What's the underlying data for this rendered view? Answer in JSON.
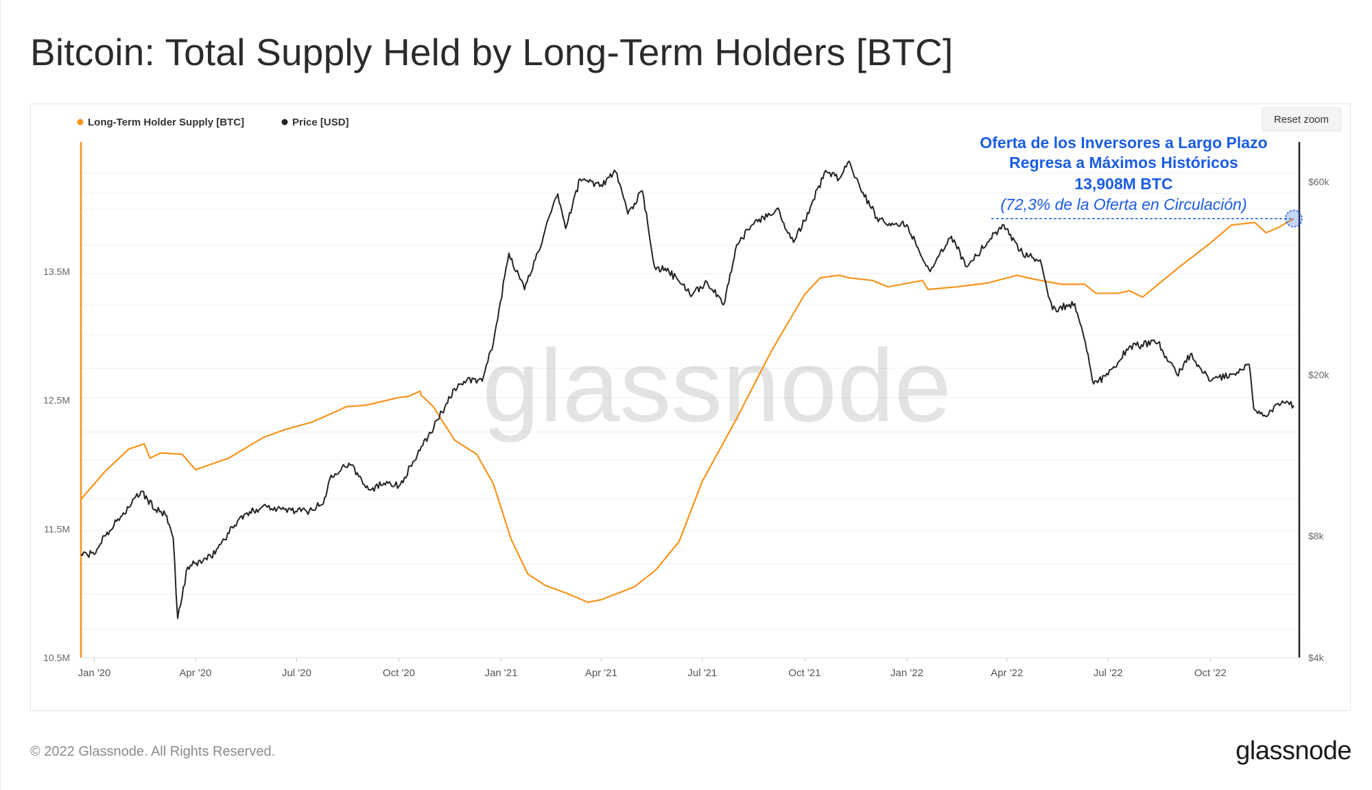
{
  "title": "Bitcoin: Total Supply Held by Long-Term Holders [BTC]",
  "footer": {
    "copyright": "© 2022 Glassnode. All Rights Reserved.",
    "logo": "glassnode"
  },
  "watermark": "glassnode",
  "reset_zoom_label": "Reset zoom",
  "colors": {
    "supply": "#f7931a",
    "price": "#222222",
    "annotation": "#1a5ce6",
    "grid": "#ececec"
  },
  "annotation": {
    "lines": [
      "Oferta de los Inversores a Largo Plazo",
      "Regresa a Máximos Históricos",
      "13,908M BTC"
    ],
    "note": "(72,3% de la Oferta en Circulación)"
  },
  "chart_data": {
    "type": "line",
    "title": "Bitcoin: Total Supply Held by Long-Term Holders [BTC]",
    "legend": {
      "position": "top-left",
      "entries": [
        "Long-Term Holder Supply [BTC]",
        "Price [USD]"
      ]
    },
    "x_ticks": [
      "Jan '20",
      "Apr '20",
      "Jul '20",
      "Oct '20",
      "Jan '21",
      "Apr '21",
      "Jul '21",
      "Oct '21",
      "Jan '22",
      "Apr '22",
      "Jul '22",
      "Oct '22"
    ],
    "y_left": {
      "ticks": [
        "10.5M",
        "11.5M",
        "12.5M",
        "13.5M"
      ],
      "range": [
        10.5,
        14.5
      ],
      "unit": "M BTC"
    },
    "y_right": {
      "ticks": [
        "$4k",
        "$8k",
        "$20k",
        "$60k"
      ],
      "scale": "log",
      "range": [
        4000,
        75000
      ]
    },
    "grid": true,
    "x_range": [
      "2019-12-20",
      "2022-12-20"
    ],
    "series": [
      {
        "name": "Long-Term Holder Supply [BTC]",
        "axis": "left",
        "x": [
          "2019-12-20",
          "2020-01-10",
          "2020-02-01",
          "2020-02-15",
          "2020-02-20",
          "2020-03-01",
          "2020-03-20",
          "2020-04-01",
          "2020-05-01",
          "2020-06-01",
          "2020-06-20",
          "2020-07-15",
          "2020-08-05",
          "2020-08-15",
          "2020-09-01",
          "2020-10-01",
          "2020-10-10",
          "2020-10-20",
          "2020-10-21",
          "2020-11-01",
          "2020-11-20",
          "2020-12-10",
          "2020-12-25",
          "2021-01-10",
          "2021-01-25",
          "2021-02-10",
          "2021-03-01",
          "2021-03-20",
          "2021-04-01",
          "2021-05-01",
          "2021-05-20",
          "2021-06-10",
          "2021-07-01",
          "2021-08-01",
          "2021-09-01",
          "2021-10-01",
          "2021-10-15",
          "2021-11-01",
          "2021-11-10",
          "2021-11-20",
          "2021-12-01",
          "2021-12-15",
          "2022-01-15",
          "2022-01-20",
          "2022-02-15",
          "2022-03-15",
          "2022-04-10",
          "2022-04-25",
          "2022-05-20",
          "2022-06-10",
          "2022-06-20",
          "2022-07-10",
          "2022-07-20",
          "2022-08-01",
          "2022-09-01",
          "2022-10-01",
          "2022-10-20",
          "2022-11-10",
          "2022-11-20",
          "2022-12-01",
          "2022-12-15"
        ],
        "values": [
          11.73,
          11.94,
          12.12,
          12.16,
          12.05,
          12.09,
          12.08,
          11.96,
          12.05,
          12.21,
          12.27,
          12.33,
          12.41,
          12.45,
          12.46,
          12.52,
          12.53,
          12.57,
          12.54,
          12.45,
          12.19,
          12.08,
          11.85,
          11.42,
          11.15,
          11.06,
          11.0,
          10.93,
          10.95,
          11.05,
          11.18,
          11.4,
          11.87,
          12.36,
          12.88,
          13.32,
          13.45,
          13.47,
          13.45,
          13.44,
          13.43,
          13.38,
          13.43,
          13.36,
          13.38,
          13.41,
          13.47,
          13.44,
          13.4,
          13.4,
          13.33,
          13.33,
          13.35,
          13.3,
          13.52,
          13.72,
          13.86,
          13.88,
          13.8,
          13.84,
          13.91
        ]
      },
      {
        "name": "Price [USD]",
        "axis": "right",
        "x": [
          "2019-12-20",
          "2020-01-01",
          "2020-01-10",
          "2020-02-01",
          "2020-02-12",
          "2020-02-25",
          "2020-03-05",
          "2020-03-12",
          "2020-03-16",
          "2020-03-25",
          "2020-04-15",
          "2020-05-10",
          "2020-06-01",
          "2020-06-20",
          "2020-07-10",
          "2020-07-25",
          "2020-08-01",
          "2020-08-17",
          "2020-09-05",
          "2020-09-20",
          "2020-10-01",
          "2020-10-20",
          "2020-11-05",
          "2020-11-20",
          "2020-12-01",
          "2020-12-15",
          "2020-12-25",
          "2021-01-08",
          "2021-01-22",
          "2021-02-08",
          "2021-02-21",
          "2021-02-28",
          "2021-03-13",
          "2021-04-01",
          "2021-04-14",
          "2021-04-25",
          "2021-05-08",
          "2021-05-19",
          "2021-06-01",
          "2021-06-22",
          "2021-07-05",
          "2021-07-20",
          "2021-08-01",
          "2021-08-15",
          "2021-09-06",
          "2021-09-21",
          "2021-10-01",
          "2021-10-20",
          "2021-11-01",
          "2021-11-10",
          "2021-11-20",
          "2021-12-05",
          "2021-12-20",
          "2022-01-01",
          "2022-01-22",
          "2022-02-10",
          "2022-02-24",
          "2022-03-28",
          "2022-04-15",
          "2022-05-01",
          "2022-05-12",
          "2022-06-01",
          "2022-06-13",
          "2022-06-18",
          "2022-07-01",
          "2022-07-20",
          "2022-08-15",
          "2022-09-01",
          "2022-09-13",
          "2022-10-01",
          "2022-10-25",
          "2022-11-05",
          "2022-11-09",
          "2022-11-21",
          "2022-12-01",
          "2022-12-15"
        ],
        "values": [
          7200,
          7200,
          8000,
          9400,
          10300,
          9300,
          9000,
          7900,
          5000,
          6700,
          7100,
          8800,
          9500,
          9300,
          9200,
          9600,
          11300,
          12100,
          10400,
          10900,
          10600,
          13000,
          15500,
          18500,
          19400,
          19300,
          24000,
          40000,
          32500,
          44000,
          56000,
          46000,
          61000,
          59000,
          63500,
          50000,
          57000,
          37000,
          36000,
          31500,
          34000,
          29800,
          42000,
          47000,
          51500,
          42500,
          48000,
          64000,
          61000,
          67500,
          58000,
          49000,
          47000,
          47000,
          36000,
          44000,
          37000,
          47000,
          40000,
          38500,
          29000,
          30000,
          22500,
          19000,
          20000,
          23500,
          24000,
          20000,
          22500,
          19300,
          20300,
          21200,
          16500,
          15800,
          17000,
          16800
        ]
      }
    ]
  }
}
